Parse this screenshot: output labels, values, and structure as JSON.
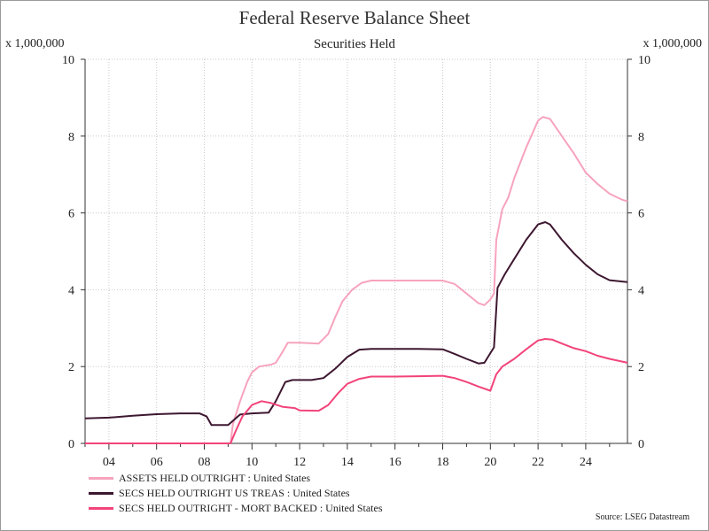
{
  "chart_data": {
    "type": "line",
    "title": "Federal Reserve Balance Sheet",
    "subtitle": "Securities Held",
    "unit_left": "x 1,000,000",
    "unit_right": "x 1,000,000",
    "source": "Source: LSEG Datastream",
    "xlim": [
      2003.0,
      2025.75
    ],
    "ylim": [
      0,
      10
    ],
    "y_ticks": [
      0,
      2,
      4,
      6,
      8,
      10
    ],
    "x_ticks": [
      {
        "value": 2004,
        "label": "04"
      },
      {
        "value": 2006,
        "label": "06"
      },
      {
        "value": 2008,
        "label": "08"
      },
      {
        "value": 2010,
        "label": "10"
      },
      {
        "value": 2012,
        "label": "12"
      },
      {
        "value": 2014,
        "label": "14"
      },
      {
        "value": 2016,
        "label": "16"
      },
      {
        "value": 2018,
        "label": "18"
      },
      {
        "value": 2020,
        "label": "20"
      },
      {
        "value": 2022,
        "label": "22"
      },
      {
        "value": 2024,
        "label": "24"
      }
    ],
    "grid": true,
    "legend_position": "bottom-left",
    "series": [
      {
        "name": "ASSETS HELD OUTRIGHT : United States",
        "color": "#f7a3bd",
        "points": [
          [
            2009.1,
            0.0
          ],
          [
            2009.2,
            0.5
          ],
          [
            2009.5,
            1.1
          ],
          [
            2009.8,
            1.6
          ],
          [
            2010.0,
            1.85
          ],
          [
            2010.3,
            2.0
          ],
          [
            2010.8,
            2.05
          ],
          [
            2011.0,
            2.1
          ],
          [
            2011.3,
            2.4
          ],
          [
            2011.5,
            2.62
          ],
          [
            2012.0,
            2.62
          ],
          [
            2012.8,
            2.6
          ],
          [
            2013.2,
            2.85
          ],
          [
            2013.5,
            3.3
          ],
          [
            2013.8,
            3.7
          ],
          [
            2014.2,
            4.0
          ],
          [
            2014.6,
            4.18
          ],
          [
            2015.0,
            4.24
          ],
          [
            2016.0,
            4.24
          ],
          [
            2017.0,
            4.24
          ],
          [
            2018.0,
            4.24
          ],
          [
            2018.5,
            4.15
          ],
          [
            2019.0,
            3.9
          ],
          [
            2019.5,
            3.65
          ],
          [
            2019.75,
            3.6
          ],
          [
            2020.0,
            3.75
          ],
          [
            2020.15,
            3.9
          ],
          [
            2020.25,
            5.3
          ],
          [
            2020.5,
            6.1
          ],
          [
            2020.75,
            6.4
          ],
          [
            2021.0,
            6.9
          ],
          [
            2021.5,
            7.7
          ],
          [
            2022.0,
            8.4
          ],
          [
            2022.2,
            8.5
          ],
          [
            2022.5,
            8.45
          ],
          [
            2023.0,
            8.0
          ],
          [
            2023.5,
            7.55
          ],
          [
            2024.0,
            7.05
          ],
          [
            2024.5,
            6.75
          ],
          [
            2025.0,
            6.5
          ],
          [
            2025.5,
            6.35
          ],
          [
            2025.75,
            6.3
          ]
        ]
      },
      {
        "name": "SECS HELD OUTRIGHT US TREAS : United States",
        "color": "#3d1730",
        "points": [
          [
            2003.0,
            0.65
          ],
          [
            2004.0,
            0.67
          ],
          [
            2005.0,
            0.72
          ],
          [
            2006.0,
            0.76
          ],
          [
            2007.0,
            0.78
          ],
          [
            2007.8,
            0.78
          ],
          [
            2008.1,
            0.7
          ],
          [
            2008.3,
            0.48
          ],
          [
            2009.0,
            0.48
          ],
          [
            2009.5,
            0.75
          ],
          [
            2010.0,
            0.78
          ],
          [
            2010.7,
            0.8
          ],
          [
            2011.0,
            1.1
          ],
          [
            2011.4,
            1.6
          ],
          [
            2011.7,
            1.65
          ],
          [
            2012.5,
            1.65
          ],
          [
            2013.0,
            1.7
          ],
          [
            2013.5,
            1.95
          ],
          [
            2014.0,
            2.25
          ],
          [
            2014.5,
            2.44
          ],
          [
            2015.0,
            2.46
          ],
          [
            2016.0,
            2.46
          ],
          [
            2017.0,
            2.46
          ],
          [
            2018.0,
            2.45
          ],
          [
            2018.5,
            2.33
          ],
          [
            2019.0,
            2.2
          ],
          [
            2019.5,
            2.08
          ],
          [
            2019.75,
            2.1
          ],
          [
            2020.0,
            2.35
          ],
          [
            2020.15,
            2.5
          ],
          [
            2020.3,
            4.05
          ],
          [
            2020.6,
            4.4
          ],
          [
            2021.0,
            4.8
          ],
          [
            2021.5,
            5.3
          ],
          [
            2022.0,
            5.7
          ],
          [
            2022.3,
            5.76
          ],
          [
            2022.5,
            5.7
          ],
          [
            2023.0,
            5.3
          ],
          [
            2023.5,
            4.95
          ],
          [
            2024.0,
            4.65
          ],
          [
            2024.5,
            4.4
          ],
          [
            2025.0,
            4.25
          ],
          [
            2025.75,
            4.2
          ]
        ]
      },
      {
        "name": "SECS HELD OUTRIGHT - MORT BACKED : United States",
        "color": "#f2447a",
        "points": [
          [
            2003.0,
            0.0
          ],
          [
            2009.1,
            0.0
          ],
          [
            2009.3,
            0.3
          ],
          [
            2009.6,
            0.7
          ],
          [
            2010.0,
            1.0
          ],
          [
            2010.4,
            1.1
          ],
          [
            2010.8,
            1.05
          ],
          [
            2011.3,
            0.95
          ],
          [
            2011.8,
            0.92
          ],
          [
            2012.0,
            0.86
          ],
          [
            2012.8,
            0.85
          ],
          [
            2013.2,
            1.0
          ],
          [
            2013.6,
            1.3
          ],
          [
            2014.0,
            1.55
          ],
          [
            2014.5,
            1.68
          ],
          [
            2015.0,
            1.74
          ],
          [
            2016.0,
            1.74
          ],
          [
            2017.0,
            1.75
          ],
          [
            2018.0,
            1.76
          ],
          [
            2018.5,
            1.7
          ],
          [
            2019.0,
            1.6
          ],
          [
            2019.5,
            1.48
          ],
          [
            2020.0,
            1.37
          ],
          [
            2020.25,
            1.8
          ],
          [
            2020.5,
            2.0
          ],
          [
            2021.0,
            2.2
          ],
          [
            2021.5,
            2.45
          ],
          [
            2022.0,
            2.68
          ],
          [
            2022.3,
            2.72
          ],
          [
            2022.6,
            2.7
          ],
          [
            2023.0,
            2.6
          ],
          [
            2023.5,
            2.48
          ],
          [
            2024.0,
            2.4
          ],
          [
            2024.5,
            2.28
          ],
          [
            2025.0,
            2.2
          ],
          [
            2025.75,
            2.1
          ]
        ]
      }
    ]
  }
}
